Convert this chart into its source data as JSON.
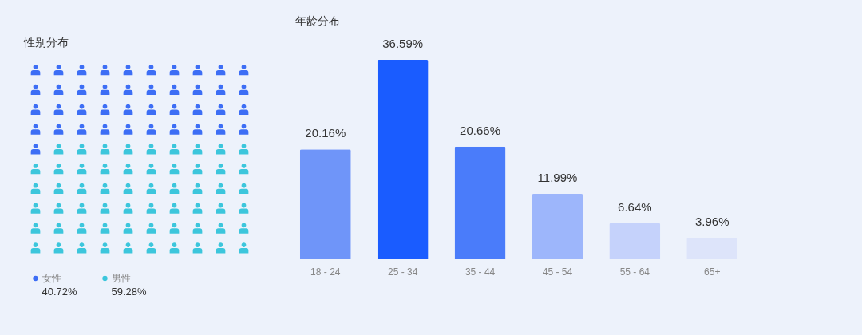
{
  "chart_data": [
    {
      "type": "other",
      "title": "性别分布",
      "categories": [
        "女性",
        "男性"
      ],
      "values": [
        40.72,
        59.28
      ],
      "colors": [
        "#3d6ef5",
        "#3cc6dc"
      ],
      "value_labels": [
        "40.72%",
        "59.28%"
      ]
    },
    {
      "type": "bar",
      "title": "年龄分布",
      "categories": [
        "18 - 24",
        "25 - 34",
        "35 - 44",
        "45 - 54",
        "55 - 64",
        "65+"
      ],
      "values": [
        20.16,
        36.59,
        20.66,
        11.99,
        6.64,
        3.96
      ],
      "colors": [
        "#6f95f9",
        "#1a5cff",
        "#4a7cfa",
        "#9db6fb",
        "#c5d2fb",
        "#dde4fa"
      ],
      "value_labels": [
        "20.16%",
        "36.59%",
        "20.66%",
        "11.99%",
        "6.64%",
        "3.96%"
      ]
    }
  ]
}
